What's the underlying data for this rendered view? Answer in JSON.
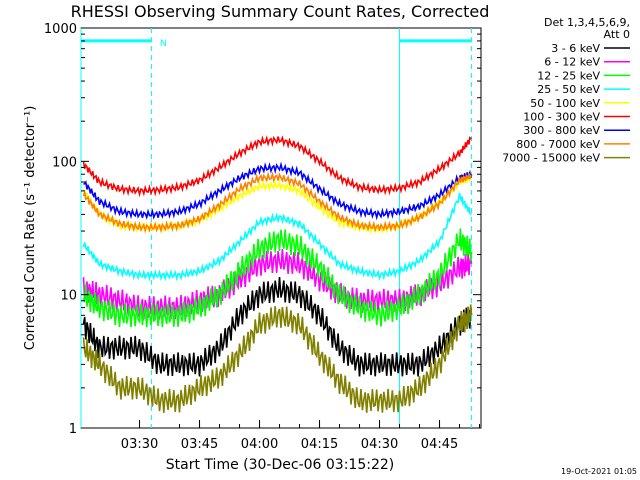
{
  "chart_data": {
    "type": "line",
    "title": "RHESSI Observing Summary Count Rates, Corrected",
    "ylabel": "Corrected Count Rate (s⁻¹ detector⁻¹)",
    "xlabel": "Start Time (30-Dec-06 03:15:22)",
    "xticks": [
      "03:30",
      "03:45",
      "04:00",
      "04:15",
      "04:30",
      "04:45"
    ],
    "yticks": [
      "1",
      "10",
      "100",
      "1000"
    ],
    "yscale": "log",
    "ylim": [
      1,
      1000
    ],
    "xlim": [
      "03:15:22",
      "04:55:22"
    ],
    "grid": false,
    "legend_placement": "right",
    "legend_header": [
      "Det 1,3,4,5,6,9,",
      "Att 0"
    ],
    "timestamp": "19-Oct-2021 01:05",
    "flag_label": "N",
    "flags": [
      {
        "label": "night_bar_1",
        "start": "03:15:22",
        "end": "03:33:00",
        "y": 800
      },
      {
        "label": "night_bar_2",
        "start": "04:35:00",
        "end": "04:53:00",
        "y": 800
      }
    ],
    "vlines_solid": [
      "03:15:22",
      "04:35:00"
    ],
    "vlines_dashed": [
      "03:33:00",
      "04:53:00"
    ],
    "x": [
      "03:16",
      "03:20",
      "03:25",
      "03:30",
      "03:35",
      "03:40",
      "03:45",
      "03:50",
      "03:55",
      "04:00",
      "04:05",
      "04:10",
      "04:15",
      "04:20",
      "04:25",
      "04:30",
      "04:35",
      "04:40",
      "04:45",
      "04:50",
      "04:53"
    ],
    "series": [
      {
        "name": "3 - 6 keV",
        "color": "#000000",
        "values": [
          6,
          4,
          4,
          4,
          3,
          3,
          3,
          4,
          7,
          10,
          11,
          10,
          7,
          4,
          3,
          3,
          3,
          3,
          4,
          6,
          7
        ]
      },
      {
        "name": "6 - 12 keV",
        "color": "#ff00ff",
        "values": [
          11,
          10,
          9,
          8,
          8,
          8,
          9,
          10,
          13,
          17,
          18,
          17,
          13,
          10,
          9,
          9,
          9,
          10,
          12,
          16,
          17
        ]
      },
      {
        "name": "12 - 25 keV",
        "color": "#00ff00",
        "values": [
          10,
          8,
          7,
          7,
          7,
          7,
          8,
          10,
          15,
          22,
          26,
          23,
          16,
          10,
          8,
          7,
          8,
          10,
          14,
          26,
          21
        ]
      },
      {
        "name": "25 - 50 keV",
        "color": "#00ffff",
        "values": [
          24,
          17,
          15,
          14,
          14,
          14,
          15,
          18,
          25,
          35,
          38,
          34,
          24,
          17,
          15,
          14,
          15,
          18,
          25,
          55,
          40
        ]
      },
      {
        "name": "50 - 100 keV",
        "color": "#ffff00",
        "values": [
          60,
          40,
          33,
          32,
          32,
          33,
          36,
          44,
          55,
          65,
          66,
          60,
          45,
          35,
          32,
          31,
          33,
          38,
          50,
          70,
          75
        ]
      },
      {
        "name": "100 - 300 keV",
        "color": "#ff0000",
        "values": [
          95,
          70,
          62,
          60,
          61,
          64,
          72,
          90,
          115,
          140,
          145,
          130,
          100,
          75,
          64,
          61,
          63,
          70,
          88,
          115,
          150
        ]
      },
      {
        "name": "300 - 800 keV",
        "color": "#0000ff",
        "values": [
          70,
          50,
          42,
          40,
          40,
          42,
          48,
          60,
          75,
          88,
          90,
          82,
          62,
          48,
          42,
          40,
          42,
          46,
          56,
          75,
          80
        ]
      },
      {
        "name": "800 - 7000 keV",
        "color": "#ff8000",
        "values": [
          57,
          40,
          34,
          32,
          32,
          33,
          37,
          47,
          62,
          75,
          76,
          68,
          50,
          38,
          33,
          32,
          33,
          38,
          48,
          72,
          78
        ]
      },
      {
        "name": "7000 - 15000 keV",
        "color": "#808000",
        "values": [
          4,
          3,
          2,
          2,
          1.6,
          1.6,
          2,
          2.4,
          3.6,
          6,
          7,
          6,
          3.5,
          2.2,
          1.6,
          1.6,
          1.6,
          2,
          3,
          6,
          7
        ]
      }
    ]
  }
}
